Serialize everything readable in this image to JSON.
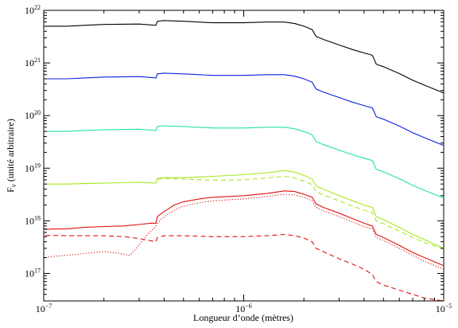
{
  "chart_data": {
    "type": "line",
    "title": "",
    "xlabel": "Longueur d’onde (mètres)",
    "ylabel_main": "F",
    "ylabel_sub": "ν",
    "ylabel_rest": " (unité arbitraire)",
    "x_scale": "log",
    "y_scale": "log",
    "xlim": [
      1e-07,
      1e-05
    ],
    "ylim": [
      3e+16,
      1e+22
    ],
    "x_ticks": [
      {
        "value": 1e-07,
        "base": "10",
        "exp": "−7"
      },
      {
        "value": 1e-06,
        "base": "10",
        "exp": "−6"
      },
      {
        "value": 1e-05,
        "base": "10",
        "exp": "−5"
      }
    ],
    "y_ticks": [
      {
        "value": 1e+17,
        "base": "10",
        "exp": "17"
      },
      {
        "value": 1e+18,
        "base": "10",
        "exp": "18"
      },
      {
        "value": 1e+19,
        "base": "10",
        "exp": "19"
      },
      {
        "value": 1e+20,
        "base": "10",
        "exp": "20"
      },
      {
        "value": 1e+21,
        "base": "10",
        "exp": "21"
      },
      {
        "value": 1e+22,
        "base": "10",
        "exp": "22"
      }
    ],
    "grid": false,
    "legend": "none",
    "series": [
      {
        "color": "#000000",
        "style": "solid",
        "x": [
          1.02e-07,
          1.1e-07,
          1.3e-07,
          1.6e-07,
          2e-07,
          3e-07,
          3.64e-07,
          3.7e-07,
          4e-07,
          5e-07,
          7e-07,
          1e-06,
          1.3e-06,
          1.6e-06,
          1.8e-06,
          2e-06,
          2.2e-06,
          2.3e-06,
          2.5e-06,
          3e-06,
          3.5e-06,
          4e-06,
          4.4e-06,
          4.6e-06,
          5e-06,
          6e-06,
          7e-06,
          8e-06,
          1e-05
        ],
        "y": [
          5e+21,
          5e+21,
          5e+21,
          5.2e+21,
          5.4e+21,
          5.5e+21,
          5.2e+21,
          6.2e+21,
          6.4e+21,
          6.2e+21,
          5.8e+21,
          5.8e+21,
          6e+21,
          6e+21,
          5.6e+21,
          5e+21,
          4.3e+21,
          3.2e+21,
          2.8e+21,
          2.2e+21,
          1.8e+21,
          1.55e+21,
          1.4e+21,
          9.5e+20,
          8.5e+20,
          6.3e+20,
          4.7e+20,
          3.8e+20,
          2.7e+20
        ]
      },
      {
        "color": "#0a20e0",
        "style": "solid",
        "x": [
          1.02e-07,
          1.1e-07,
          1.3e-07,
          1.6e-07,
          2e-07,
          3e-07,
          3.64e-07,
          3.7e-07,
          4e-07,
          5e-07,
          7e-07,
          1e-06,
          1.3e-06,
          1.6e-06,
          1.8e-06,
          2e-06,
          2.2e-06,
          2.3e-06,
          2.5e-06,
          3e-06,
          3.5e-06,
          4e-06,
          4.4e-06,
          4.6e-06,
          5e-06,
          6e-06,
          7e-06,
          8e-06,
          1e-05
        ],
        "y": [
          5e+20,
          5e+20,
          5e+20,
          5.2e+20,
          5.4e+20,
          5.5e+20,
          5.2e+20,
          6.2e+20,
          6.4e+20,
          6.2e+20,
          5.8e+20,
          5.8e+20,
          6e+20,
          6e+20,
          5.6e+20,
          5e+20,
          4.3e+20,
          3.2e+20,
          2.8e+20,
          2.2e+20,
          1.8e+20,
          1.55e+20,
          1.4e+20,
          9.5e+19,
          8.5e+19,
          6.3e+19,
          4.7e+19,
          3.8e+19,
          2.7e+19
        ]
      },
      {
        "color": "#22e0b0",
        "style": "solid",
        "x": [
          1.02e-07,
          1.1e-07,
          1.3e-07,
          1.6e-07,
          2e-07,
          3e-07,
          3.64e-07,
          3.7e-07,
          4e-07,
          5e-07,
          7e-07,
          1e-06,
          1.3e-06,
          1.6e-06,
          1.8e-06,
          2e-06,
          2.2e-06,
          2.3e-06,
          2.5e-06,
          3e-06,
          3.5e-06,
          4e-06,
          4.4e-06,
          4.6e-06,
          5e-06,
          6e-06,
          7e-06,
          8e-06,
          1e-05
        ],
        "y": [
          5e+19,
          5e+19,
          5e+19,
          5.2e+19,
          5.4e+19,
          5.5e+19,
          5.2e+19,
          6.2e+19,
          6.4e+19,
          6.2e+19,
          5.8e+19,
          5.8e+19,
          6e+19,
          6e+19,
          5.6e+19,
          5e+19,
          4.3e+19,
          3.2e+19,
          2.8e+19,
          2.2e+19,
          1.8e+19,
          1.55e+19,
          1.4e+19,
          9.5e+18,
          8.5e+18,
          6.3e+18,
          4.7e+18,
          3.8e+18,
          2.7e+18
        ]
      },
      {
        "color": "#a6e81a",
        "style": "solid",
        "x": [
          1.02e-07,
          1.1e-07,
          1.3e-07,
          1.6e-07,
          2e-07,
          3e-07,
          3.64e-07,
          3.7e-07,
          4e-07,
          5e-07,
          7e-07,
          1e-06,
          1.3e-06,
          1.6e-06,
          1.8e-06,
          2e-06,
          2.2e-06,
          2.3e-06,
          2.5e-06,
          3e-06,
          3.5e-06,
          4e-06,
          4.4e-06,
          4.6e-06,
          5e-06,
          6e-06,
          7e-06,
          8e-06,
          1e-05
        ],
        "y": [
          5e+18,
          5e+18,
          5e+18,
          5.1e+18,
          5.2e+18,
          5.4e+18,
          5.2e+18,
          6.4e+18,
          6.6e+18,
          6.6e+18,
          7e+18,
          7.5e+18,
          8.2e+18,
          9e+18,
          8.4e+18,
          7.3e+18,
          6.2e+18,
          4.6e+18,
          4e+18,
          3e+18,
          2.4e+18,
          2e+18,
          1.8e+18,
          1.2e+18,
          1.05e+18,
          7.5e+17,
          5.5e+17,
          4.4e+17,
          3e+17
        ]
      },
      {
        "color": "#a6e81a",
        "style": "dashed",
        "x": [
          3.7e-07,
          4e-07,
          5e-07,
          7e-07,
          1e-06,
          1.3e-06,
          1.6e-06,
          1.8e-06,
          2e-06,
          2.2e-06,
          2.3e-06,
          2.5e-06,
          3e-06,
          3.5e-06,
          4e-06,
          4.4e-06,
          4.6e-06,
          5e-06,
          6e-06,
          7e-06,
          8e-06,
          1e-05
        ],
        "y": [
          6.2e+18,
          6.4e+18,
          6.2e+18,
          5.9e+18,
          6e+18,
          6.5e+18,
          7e+18,
          6.5e+18,
          5.7e+18,
          4.9e+18,
          3.6e+18,
          3.1e+18,
          2.4e+18,
          1.9e+18,
          1.6e+18,
          1.45e+18,
          1e+18,
          8.8e+17,
          6.4e+17,
          4.8e+17,
          3.9e+17,
          2.9e+17
        ]
      },
      {
        "color": "#e01010",
        "style": "solid",
        "x": [
          1.02e-07,
          1.1e-07,
          1.3e-07,
          1.6e-07,
          2e-07,
          2.5e-07,
          3e-07,
          3.4e-07,
          3.64e-07,
          3.7e-07,
          4e-07,
          4.5e-07,
          5e-07,
          6e-07,
          7e-07,
          1e-06,
          1.3e-06,
          1.6e-06,
          1.8e-06,
          2e-06,
          2.2e-06,
          2.3e-06,
          2.5e-06,
          3e-06,
          3.5e-06,
          4e-06,
          4.4e-06,
          4.6e-06,
          5e-06,
          6e-06,
          7e-06,
          8e-06,
          1e-05
        ],
        "y": [
          6.8e+17,
          7e+17,
          7e+17,
          7.5e+17,
          7.8e+17,
          8e+17,
          8.5e+17,
          9e+17,
          9e+17,
          1.2e+18,
          1.5e+18,
          2e+18,
          2.3e+18,
          2.6e+18,
          2.8e+18,
          3e+18,
          3.3e+18,
          3.7e+18,
          3.6e+18,
          3.2e+18,
          2.8e+18,
          2.1e+18,
          1.8e+18,
          1.4e+18,
          1.1e+18,
          9e+17,
          8e+17,
          5.5e+17,
          4.8e+17,
          3.4e+17,
          2.5e+17,
          2e+17,
          1.4e+17
        ]
      },
      {
        "color": "#e01010",
        "style": "dashed",
        "x": [
          1.02e-07,
          1.1e-07,
          1.3e-07,
          1.6e-07,
          2e-07,
          2.5e-07,
          3e-07,
          3.4e-07,
          3.64e-07,
          3.7e-07,
          4e-07,
          5e-07,
          7e-07,
          1e-06,
          1.3e-06,
          1.6e-06,
          1.8e-06,
          2e-06,
          2.2e-06,
          2.3e-06,
          2.5e-06,
          3e-06,
          3.5e-06,
          4e-06,
          4.4e-06,
          4.6e-06,
          5e-06,
          6e-06,
          7e-06,
          8e-06,
          1e-05
        ],
        "y": [
          5.2e+17,
          5.3e+17,
          5.2e+17,
          5.2e+17,
          5.2e+17,
          5e+17,
          4.6e+17,
          4.2e+17,
          4e+17,
          4.8e+17,
          5.2e+17,
          5.2e+17,
          5e+17,
          5e+17,
          5.2e+17,
          5.5e+17,
          5.2e+17,
          4.7e+17,
          4e+17,
          3e+17,
          2.6e+17,
          1.9e+17,
          1.5e+17,
          1.2e+17,
          9.5e+16,
          7e+16,
          6e+16,
          4.8e+16,
          4e+16,
          3.4e+16,
          3e+16
        ]
      },
      {
        "color": "#e01010",
        "style": "dotted",
        "x": [
          1.02e-07,
          1.1e-07,
          1.3e-07,
          1.6e-07,
          2e-07,
          2.4e-07,
          2.7e-07,
          3e-07,
          3.3e-07,
          3.6e-07,
          3.7e-07,
          4e-07,
          4.5e-07,
          5e-07,
          6e-07,
          7e-07,
          1e-06,
          1.3e-06,
          1.6e-06,
          1.8e-06,
          2e-06,
          2.2e-06,
          2.3e-06,
          2.5e-06,
          3e-06,
          3.5e-06,
          4e-06,
          4.4e-06,
          4.6e-06,
          5e-06,
          6e-06,
          7e-06,
          8e-06,
          1e-05
        ],
        "y": [
          2e+17,
          2.1e+17,
          2.2e+17,
          2.4e+17,
          2.6e+17,
          2.4e+17,
          2.2e+17,
          3.5e+17,
          5.5e+17,
          7.5e+17,
          9e+17,
          1.2e+18,
          1.6e+18,
          1.9e+18,
          2.2e+18,
          2.4e+18,
          2.6e+18,
          2.9e+18,
          3.2e+18,
          3.1e+18,
          2.8e+18,
          2.4e+18,
          1.8e+18,
          1.55e+18,
          1.2e+18,
          9.5e+17,
          7.8e+17,
          7e+17,
          4.8e+17,
          4.2e+17,
          3e+17,
          2.2e+17,
          1.7e+17,
          1.2e+17
        ]
      }
    ]
  }
}
